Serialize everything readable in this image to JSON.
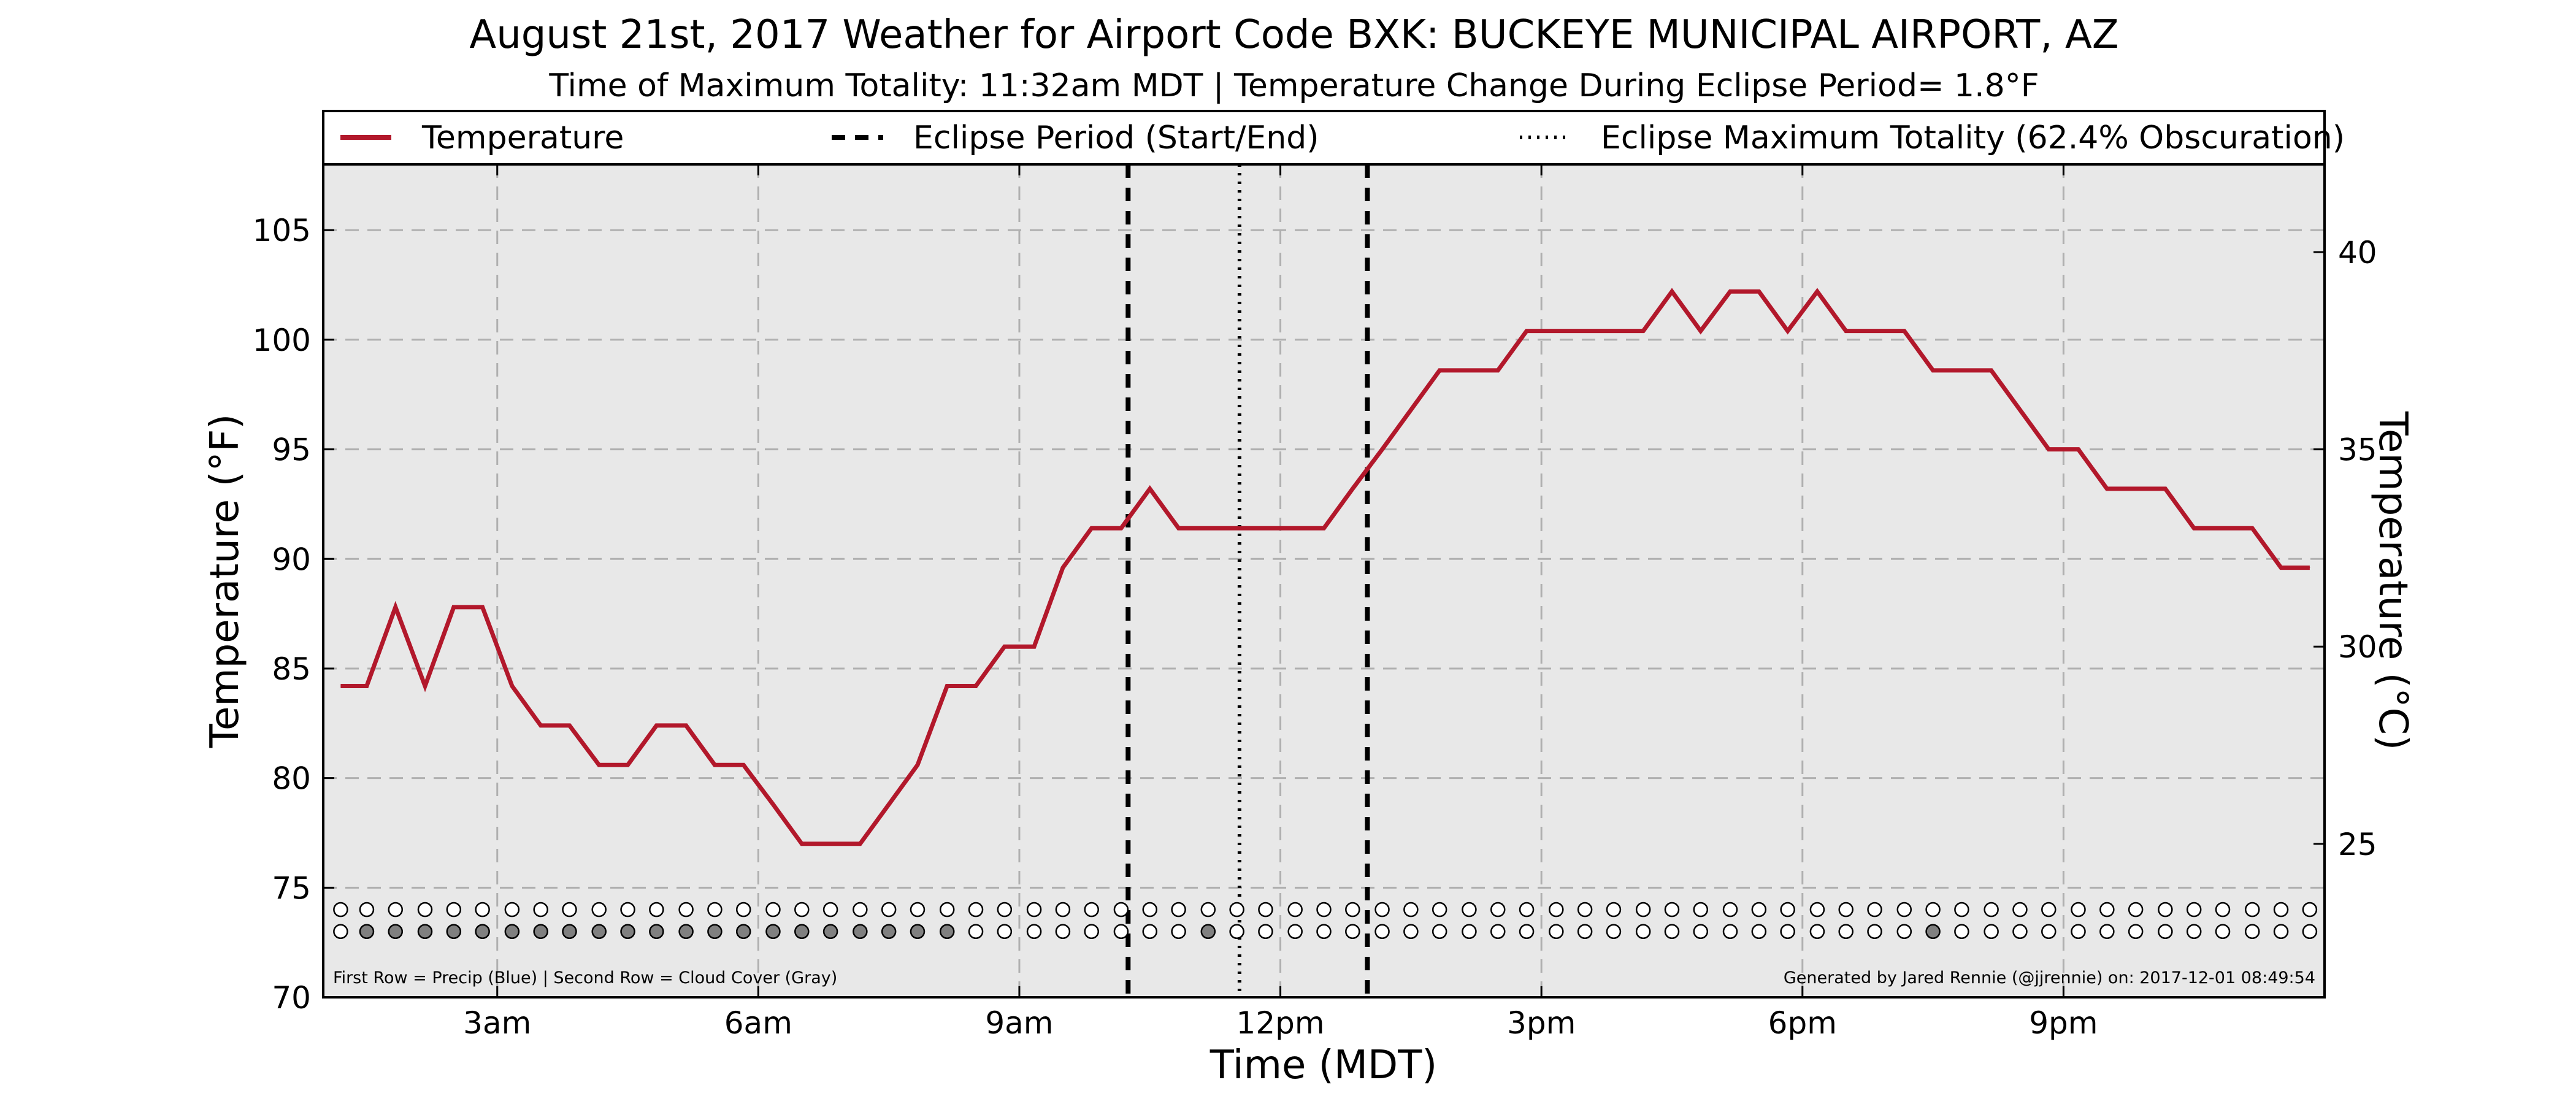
{
  "chart_data": {
    "type": "line",
    "title": "August 21st, 2017 Weather for Airport Code BXK: BUCKEYE MUNICIPAL AIRPORT, AZ",
    "subtitle": "Time of Maximum Totality: 11:32am MDT | Temperature Change During Eclipse Period= 1.8°F",
    "xlabel": "Time (MDT)",
    "ylabel_left": "Temperature (°F)",
    "ylabel_right": "Temperature (°C)",
    "x_unit": "hours after midnight (MDT)",
    "xlim": [
      1.0,
      24.0
    ],
    "ylim": [
      70,
      108
    ],
    "x_ticks": [
      {
        "x": 3,
        "label": "3am"
      },
      {
        "x": 6,
        "label": "6am"
      },
      {
        "x": 9,
        "label": "9am"
      },
      {
        "x": 12,
        "label": "12pm"
      },
      {
        "x": 15,
        "label": "3pm"
      },
      {
        "x": 18,
        "label": "6pm"
      },
      {
        "x": 21,
        "label": "9pm"
      }
    ],
    "y_ticks_left": [
      70,
      75,
      80,
      85,
      90,
      95,
      100,
      105
    ],
    "y_ticks_right": [
      {
        "c": 25,
        "label": "25"
      },
      {
        "c": 30,
        "label": "30"
      },
      {
        "c": 35,
        "label": "35"
      },
      {
        "c": 40,
        "label": "40"
      }
    ],
    "grid": true,
    "legend_position": "top (full width)",
    "legend": [
      {
        "label": "Temperature",
        "style": "solid"
      },
      {
        "label": "Eclipse Period (Start/End)",
        "style": "dashed"
      },
      {
        "label": "Eclipse Maximum Totality (62.4% Obscuration)",
        "style": "dotted"
      }
    ],
    "series": [
      {
        "name": "Temperature",
        "color": "#b2182b",
        "x": [
          1.2,
          1.5,
          1.83,
          2.17,
          2.5,
          2.83,
          3.17,
          3.5,
          3.83,
          4.17,
          4.5,
          4.83,
          5.17,
          5.5,
          5.83,
          6.17,
          6.5,
          6.83,
          7.17,
          7.5,
          7.83,
          8.17,
          8.5,
          8.83,
          9.17,
          9.5,
          9.83,
          10.17,
          10.5,
          10.83,
          11.17,
          11.5,
          11.83,
          12.17,
          12.5,
          12.83,
          13.17,
          13.5,
          13.83,
          14.17,
          14.5,
          14.83,
          15.17,
          15.5,
          15.83,
          16.17,
          16.5,
          16.83,
          17.17,
          17.5,
          17.83,
          18.17,
          18.5,
          18.83,
          19.17,
          19.5,
          19.83,
          20.17,
          20.5,
          20.83,
          21.17,
          21.5,
          21.83,
          22.17,
          22.5,
          22.83,
          23.17,
          23.5,
          23.83
        ],
        "y": [
          84.2,
          84.2,
          87.8,
          84.2,
          87.8,
          87.8,
          84.2,
          82.4,
          82.4,
          80.6,
          80.6,
          82.4,
          82.4,
          80.6,
          80.6,
          78.8,
          77.0,
          77.0,
          77.0,
          78.8,
          80.6,
          84.2,
          84.2,
          86.0,
          86.0,
          89.6,
          91.4,
          91.4,
          93.2,
          91.4,
          91.4,
          91.4,
          91.4,
          91.4,
          91.4,
          93.2,
          95.0,
          96.8,
          98.6,
          98.6,
          98.6,
          100.4,
          100.4,
          100.4,
          100.4,
          100.4,
          102.2,
          100.4,
          102.2,
          102.2,
          100.4,
          102.2,
          100.4,
          100.4,
          100.4,
          98.6,
          98.6,
          98.6,
          96.8,
          95.0,
          95.0,
          93.2,
          93.2,
          93.2,
          91.4,
          91.4,
          91.4,
          89.6,
          89.6
        ]
      }
    ],
    "eclipse_start": 10.25,
    "eclipse_max": 11.53,
    "eclipse_end": 13.0,
    "indicator_rows": {
      "row1": {
        "name": "Precip",
        "color": "#1f5fbf",
        "y": 74.0,
        "filled_x": []
      },
      "row2": {
        "name": "Cloud Cover",
        "color": "#808080",
        "y": 73.0,
        "filled_x": [
          1.5,
          1.83,
          2.17,
          2.5,
          2.83,
          3.17,
          3.5,
          3.83,
          4.17,
          4.5,
          4.83,
          5.17,
          5.5,
          5.83,
          6.17,
          6.5,
          6.83,
          7.17,
          7.5,
          7.83,
          8.17,
          11.17,
          19.5
        ]
      }
    },
    "indicator_x": [
      1.2,
      1.5,
      1.83,
      2.17,
      2.5,
      2.83,
      3.17,
      3.5,
      3.83,
      4.17,
      4.5,
      4.83,
      5.17,
      5.5,
      5.83,
      6.17,
      6.5,
      6.83,
      7.17,
      7.5,
      7.83,
      8.17,
      8.5,
      8.83,
      9.17,
      9.5,
      9.83,
      10.17,
      10.5,
      10.83,
      11.17,
      11.5,
      11.83,
      12.17,
      12.5,
      12.83,
      13.17,
      13.5,
      13.83,
      14.17,
      14.5,
      14.83,
      15.17,
      15.5,
      15.83,
      16.17,
      16.5,
      16.83,
      17.17,
      17.5,
      17.83,
      18.17,
      18.5,
      18.83,
      19.17,
      19.5,
      19.83,
      20.17,
      20.5,
      20.83,
      21.17,
      21.5,
      21.83,
      22.17,
      22.5,
      22.83,
      23.17,
      23.5,
      23.83
    ],
    "footnote_left": "First Row = Precip (Blue) | Second Row = Cloud Cover (Gray)",
    "footnote_right": "Generated by Jared Rennie (@jjrennie) on: 2017-12-01 08:49:54",
    "colors": {
      "plot_background": "#e8e8e8",
      "grid": "#b0b0b0",
      "temperature_line": "#b2182b",
      "eclipse_lines": "#000000"
    }
  }
}
